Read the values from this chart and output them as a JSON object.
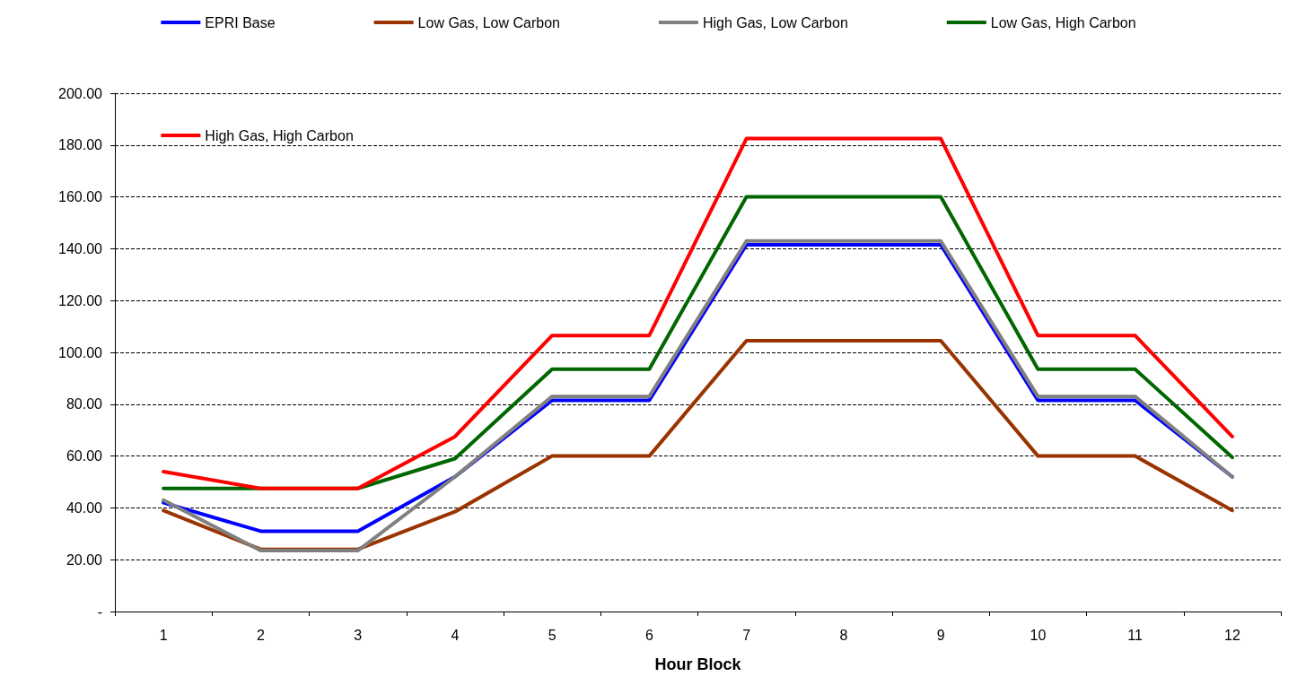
{
  "chart_data": {
    "type": "line",
    "xlabel": "Hour Block",
    "categories": [
      "1",
      "2",
      "3",
      "4",
      "5",
      "6",
      "7",
      "8",
      "9",
      "10",
      "11",
      "12"
    ],
    "series": [
      {
        "name": "EPRI Base",
        "color": "#0000ff",
        "values": [
          42,
          31,
          31,
          52,
          81.5,
          81.5,
          141.5,
          141.5,
          141.5,
          81.5,
          81.5,
          52
        ]
      },
      {
        "name": "Low Gas, Low Carbon",
        "color": "#993300",
        "values": [
          39,
          24,
          24,
          38.5,
          60,
          60,
          104.5,
          104.5,
          104.5,
          60,
          60,
          39
        ]
      },
      {
        "name": "High Gas, Low Carbon",
        "color": "#808080",
        "values": [
          43,
          23.5,
          23.5,
          52,
          83,
          83,
          143,
          143,
          143,
          83,
          83,
          52
        ]
      },
      {
        "name": "Low Gas, High Carbon",
        "color": "#006600",
        "values": [
          47.5,
          47.5,
          47.5,
          59,
          93.5,
          93.5,
          160,
          160,
          160,
          93.5,
          93.5,
          59.5
        ]
      },
      {
        "name": "High Gas, High Carbon",
        "color": "#ff0000",
        "values": [
          54,
          47.5,
          47.5,
          67.5,
          106.5,
          106.5,
          182.5,
          182.5,
          182.5,
          106.5,
          106.5,
          67.5
        ]
      }
    ],
    "ylim": [
      0,
      200
    ],
    "yticks": [
      {
        "value": 0,
        "label": "-"
      },
      {
        "value": 20,
        "label": "20.00"
      },
      {
        "value": 40,
        "label": "40.00"
      },
      {
        "value": 60,
        "label": "60.00"
      },
      {
        "value": 80,
        "label": "80.00"
      },
      {
        "value": 100,
        "label": "100.00"
      },
      {
        "value": 120,
        "label": "120.00"
      },
      {
        "value": 140,
        "label": "140.00"
      },
      {
        "value": 160,
        "label": "160.00"
      },
      {
        "value": 180,
        "label": "180.00"
      },
      {
        "value": 200,
        "label": "200.00"
      }
    ],
    "grid": "y",
    "legend": "top",
    "marker": "none",
    "line_style": "solid"
  }
}
